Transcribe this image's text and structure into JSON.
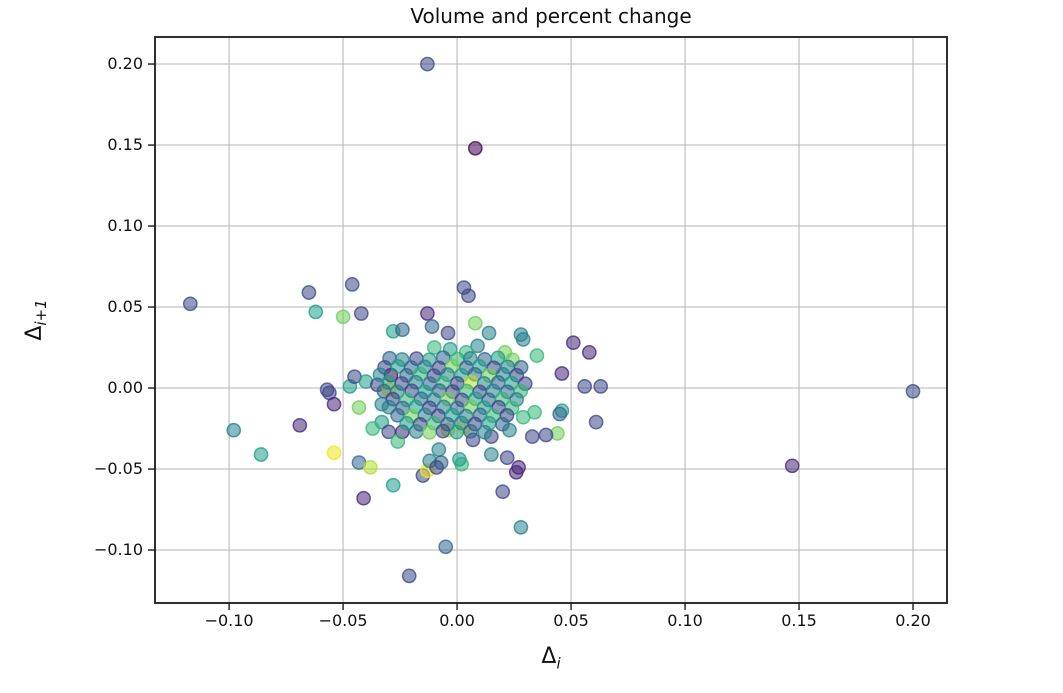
{
  "figure": {
    "background": "#ffffff",
    "grid_color": "#b4b4b4",
    "spine_color": "#1a1a1a",
    "text_color": "#111111"
  },
  "axis_labels": {
    "x_main": "Δ",
    "x_sub": "i",
    "y_main": "Δ",
    "y_sub": "i+1"
  },
  "chart_data": {
    "type": "scatter",
    "title": "Volume and percent change",
    "xlabel": "Δ_i",
    "ylabel": "Δ_(i+1)",
    "grid": true,
    "legend": false,
    "colormap": "viridis",
    "marker_opacity": 0.65,
    "xlim": [
      -0.1325,
      0.2149
    ],
    "ylim": [
      -0.1327,
      0.2167
    ],
    "x_ticks": [
      -0.1,
      -0.05,
      0.0,
      0.05,
      0.1,
      0.15,
      0.2
    ],
    "x_tick_labels": [
      "−0.10",
      "−0.05",
      "0.00",
      "0.05",
      "0.10",
      "0.15",
      "0.20"
    ],
    "y_ticks": [
      -0.1,
      -0.05,
      0.0,
      0.05,
      0.1,
      0.15,
      0.2
    ],
    "y_tick_labels": [
      "−0.10",
      "−0.05",
      "0.00",
      "0.05",
      "0.10",
      "0.15",
      "0.20"
    ],
    "palette": [
      "#440154",
      "#482878",
      "#3e4989",
      "#31688e",
      "#26828e",
      "#1f9e89",
      "#35b779",
      "#6ece58",
      "#b5de2b",
      "#f1e51d"
    ],
    "points": [
      [
        -0.117,
        0.052,
        2
      ],
      [
        -0.013,
        0.2,
        2
      ],
      [
        0.008,
        0.148,
        0
      ],
      [
        0.2,
        -0.002,
        2
      ],
      [
        0.147,
        -0.048,
        1
      ],
      [
        -0.021,
        -0.116,
        2
      ],
      [
        -0.005,
        -0.098,
        3
      ],
      [
        0.028,
        -0.086,
        4
      ],
      [
        -0.098,
        -0.026,
        4
      ],
      [
        -0.086,
        -0.041,
        5
      ],
      [
        -0.065,
        0.059,
        2
      ],
      [
        -0.062,
        0.047,
        5
      ],
      [
        -0.046,
        0.064,
        2
      ],
      [
        -0.05,
        0.044,
        7
      ],
      [
        -0.042,
        0.046,
        2
      ],
      [
        -0.069,
        -0.023,
        1
      ],
      [
        -0.041,
        -0.068,
        1
      ],
      [
        -0.028,
        -0.06,
        5
      ],
      [
        -0.015,
        -0.054,
        2
      ],
      [
        -0.013,
        -0.051,
        9
      ],
      [
        0.026,
        -0.052,
        1
      ],
      [
        0.02,
        -0.064,
        2
      ],
      [
        -0.054,
        -0.04,
        9
      ],
      [
        -0.043,
        -0.046,
        3
      ],
      [
        -0.038,
        -0.049,
        8
      ],
      [
        0.003,
        0.062,
        2
      ],
      [
        0.005,
        0.057,
        2
      ],
      [
        0.051,
        0.028,
        1
      ],
      [
        0.058,
        0.022,
        1
      ],
      [
        0.046,
        0.009,
        1
      ],
      [
        0.056,
        0.001,
        2
      ],
      [
        0.063,
        0.001,
        2
      ],
      [
        0.046,
        -0.014,
        5
      ],
      [
        0.045,
        -0.016,
        3
      ],
      [
        0.044,
        -0.028,
        7
      ],
      [
        0.061,
        -0.021,
        2
      ],
      [
        0.029,
        0.03,
        4
      ],
      [
        -0.047,
        0.001,
        5
      ],
      [
        -0.057,
        -0.001,
        2
      ],
      [
        -0.056,
        -0.003,
        2
      ],
      [
        -0.054,
        -0.01,
        1
      ],
      [
        -0.043,
        -0.012,
        7
      ],
      [
        -0.045,
        0.007,
        2
      ],
      [
        -0.04,
        0.004,
        5
      ],
      [
        -0.035,
        0.002,
        2
      ],
      [
        -0.029,
        0.008,
        0
      ],
      [
        -0.03,
        -0.001,
        9
      ],
      [
        -0.033,
        -0.01,
        4
      ],
      [
        -0.033,
        -0.021,
        5
      ],
      [
        -0.037,
        -0.025,
        6
      ],
      [
        -0.03,
        -0.027,
        2
      ],
      [
        -0.024,
        -0.027,
        1
      ],
      [
        -0.026,
        -0.033,
        6
      ],
      [
        -0.013,
        0.046,
        1
      ],
      [
        -0.011,
        0.038,
        3
      ],
      [
        -0.004,
        0.034,
        2
      ],
      [
        0.008,
        0.04,
        7
      ],
      [
        0.014,
        0.034,
        4
      ],
      [
        0.028,
        0.033,
        4
      ],
      [
        0.009,
        0.026,
        4
      ],
      [
        0.004,
        0.022,
        6
      ],
      [
        0.021,
        0.022,
        7
      ],
      [
        -0.003,
        0.024,
        5
      ],
      [
        -0.01,
        0.025,
        6
      ],
      [
        0.035,
        0.02,
        6
      ],
      [
        -0.028,
        0.035,
        5
      ],
      [
        -0.024,
        0.036,
        3
      ],
      [
        0.015,
        -0.03,
        2
      ],
      [
        0.007,
        -0.032,
        2
      ],
      [
        0.015,
        -0.041,
        4
      ],
      [
        0.022,
        -0.043,
        2
      ],
      [
        0.033,
        -0.03,
        2
      ],
      [
        0.029,
        -0.018,
        6
      ],
      [
        0.023,
        -0.026,
        4
      ],
      [
        0.027,
        -0.049,
        1
      ],
      [
        0.034,
        -0.015,
        6
      ],
      [
        0.039,
        -0.029,
        2
      ],
      [
        -0.008,
        -0.038,
        4
      ],
      [
        0.002,
        -0.047,
        6
      ],
      [
        -0.004,
        -0.026,
        8
      ],
      [
        0.003,
        -0.024,
        9
      ],
      [
        -0.012,
        -0.045,
        4
      ],
      [
        -0.007,
        -0.046,
        3
      ],
      [
        0.001,
        -0.044,
        5
      ],
      [
        -0.009,
        -0.049,
        2
      ],
      [
        -0.0296,
        0.0184,
        3
      ],
      [
        -0.0241,
        0.0176,
        4
      ],
      [
        -0.0178,
        0.0182,
        2
      ],
      [
        -0.0122,
        0.0175,
        5
      ],
      [
        -0.0061,
        0.0188,
        3
      ],
      [
        0.0002,
        0.0179,
        6
      ],
      [
        0.0058,
        0.0183,
        4
      ],
      [
        0.0121,
        0.0177,
        3
      ],
      [
        0.0179,
        0.0186,
        5
      ],
      [
        0.0243,
        0.0174,
        7
      ],
      [
        -0.0318,
        0.0128,
        2
      ],
      [
        -0.0259,
        0.0134,
        5
      ],
      [
        -0.0201,
        0.0126,
        3
      ],
      [
        -0.0142,
        0.0131,
        4
      ],
      [
        -0.0079,
        0.0124,
        2
      ],
      [
        -0.0021,
        0.0136,
        7
      ],
      [
        0.0041,
        0.0127,
        3
      ],
      [
        0.0098,
        0.0133,
        5
      ],
      [
        0.0161,
        0.0125,
        2
      ],
      [
        0.0222,
        0.0131,
        4
      ],
      [
        0.0281,
        0.0128,
        3
      ],
      [
        -0.0338,
        0.0082,
        4
      ],
      [
        -0.0222,
        0.0078,
        3
      ],
      [
        -0.0162,
        0.0086,
        6
      ],
      [
        -0.0101,
        0.0076,
        2
      ],
      [
        -0.0042,
        0.0083,
        4
      ],
      [
        0.0019,
        0.0079,
        5
      ],
      [
        0.0078,
        0.0085,
        3
      ],
      [
        0.0142,
        0.0077,
        7
      ],
      [
        0.0201,
        0.0084,
        4
      ],
      [
        0.0262,
        0.0079,
        2
      ],
      [
        -0.0301,
        0.0034,
        5
      ],
      [
        -0.0243,
        0.0028,
        2
      ],
      [
        -0.0181,
        0.0036,
        4
      ],
      [
        -0.0119,
        0.0027,
        3
      ],
      [
        -0.0062,
        0.0033,
        6
      ],
      [
        0.0001,
        0.0029,
        2
      ],
      [
        0.0062,
        0.0035,
        8
      ],
      [
        0.0119,
        0.0028,
        4
      ],
      [
        0.0181,
        0.0034,
        3
      ],
      [
        0.0238,
        0.0031,
        5
      ],
      [
        0.0299,
        0.0027,
        2
      ],
      [
        -0.0321,
        -0.0019,
        3
      ],
      [
        -0.0262,
        -0.0024,
        4
      ],
      [
        -0.0199,
        -0.0017,
        2
      ],
      [
        -0.0141,
        -0.0023,
        5
      ],
      [
        -0.0078,
        -0.0016,
        3
      ],
      [
        -0.0019,
        -0.0022,
        2
      ],
      [
        0.0042,
        -0.0018,
        6
      ],
      [
        0.0099,
        -0.0024,
        2
      ],
      [
        0.0158,
        -0.0017,
        4
      ],
      [
        0.0221,
        -0.0023,
        3
      ],
      [
        0.0279,
        -0.0019,
        6
      ],
      [
        -0.0282,
        -0.0068,
        2
      ],
      [
        -0.0221,
        -0.0073,
        6
      ],
      [
        -0.0158,
        -0.0066,
        3
      ],
      [
        -0.0102,
        -0.0072,
        4
      ],
      [
        -0.0041,
        -0.0067,
        7
      ],
      [
        0.0021,
        -0.0074,
        2
      ],
      [
        0.0081,
        -0.0066,
        5
      ],
      [
        0.0139,
        -0.0073,
        3
      ],
      [
        0.0198,
        -0.0068,
        6
      ],
      [
        0.0261,
        -0.0071,
        4
      ],
      [
        -0.0299,
        -0.0118,
        4
      ],
      [
        -0.0238,
        -0.0124,
        3
      ],
      [
        -0.0181,
        -0.0116,
        5
      ],
      [
        -0.0121,
        -0.0122,
        2
      ],
      [
        -0.0058,
        -0.0117,
        4
      ],
      [
        0.0002,
        -0.0123,
        3
      ],
      [
        0.0061,
        -0.0116,
        7
      ],
      [
        0.0118,
        -0.0121,
        5
      ],
      [
        0.0182,
        -0.0118,
        2
      ],
      [
        0.0241,
        -0.0124,
        6
      ],
      [
        -0.0261,
        -0.0168,
        3
      ],
      [
        -0.0199,
        -0.0174,
        7
      ],
      [
        -0.0141,
        -0.0166,
        4
      ],
      [
        -0.0082,
        -0.0172,
        2
      ],
      [
        -0.0021,
        -0.0167,
        5
      ],
      [
        0.0039,
        -0.0173,
        4
      ],
      [
        0.0101,
        -0.0166,
        3
      ],
      [
        0.0158,
        -0.0171,
        6
      ],
      [
        0.0219,
        -0.0168,
        2
      ],
      [
        -0.0221,
        -0.0218,
        5
      ],
      [
        -0.0162,
        -0.0224,
        2
      ],
      [
        -0.0101,
        -0.0217,
        6
      ],
      [
        -0.0042,
        -0.0223,
        3
      ],
      [
        0.0019,
        -0.0216,
        4
      ],
      [
        0.0078,
        -0.0222,
        2
      ],
      [
        0.0141,
        -0.0217,
        5
      ],
      [
        0.0199,
        -0.0223,
        3
      ],
      [
        -0.0179,
        -0.0268,
        4
      ],
      [
        -0.0121,
        -0.0274,
        7
      ],
      [
        -0.0062,
        -0.0266,
        2
      ],
      [
        -0.0001,
        -0.0272,
        5
      ],
      [
        0.0059,
        -0.0267,
        3
      ],
      [
        0.0121,
        -0.0273,
        4
      ]
    ]
  }
}
